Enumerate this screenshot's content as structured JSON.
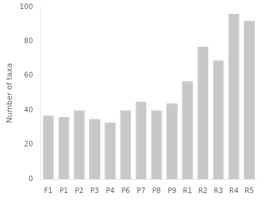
{
  "chart_data": {
    "type": "bar",
    "categories": [
      "F1",
      "P1",
      "P2",
      "P3",
      "P4",
      "P6",
      "P7",
      "P8",
      "P9",
      "R1",
      "R2",
      "R3",
      "R4",
      "R5"
    ],
    "values": [
      37,
      36,
      40,
      35,
      33,
      40,
      45,
      40,
      44,
      57,
      77,
      69,
      96,
      92
    ],
    "color": "#c8c8c8",
    "ylabel": "Number of taxa",
    "ylim": [
      0,
      100
    ],
    "yticks": [
      0,
      20,
      40,
      60,
      80,
      100
    ],
    "grid": false
  }
}
